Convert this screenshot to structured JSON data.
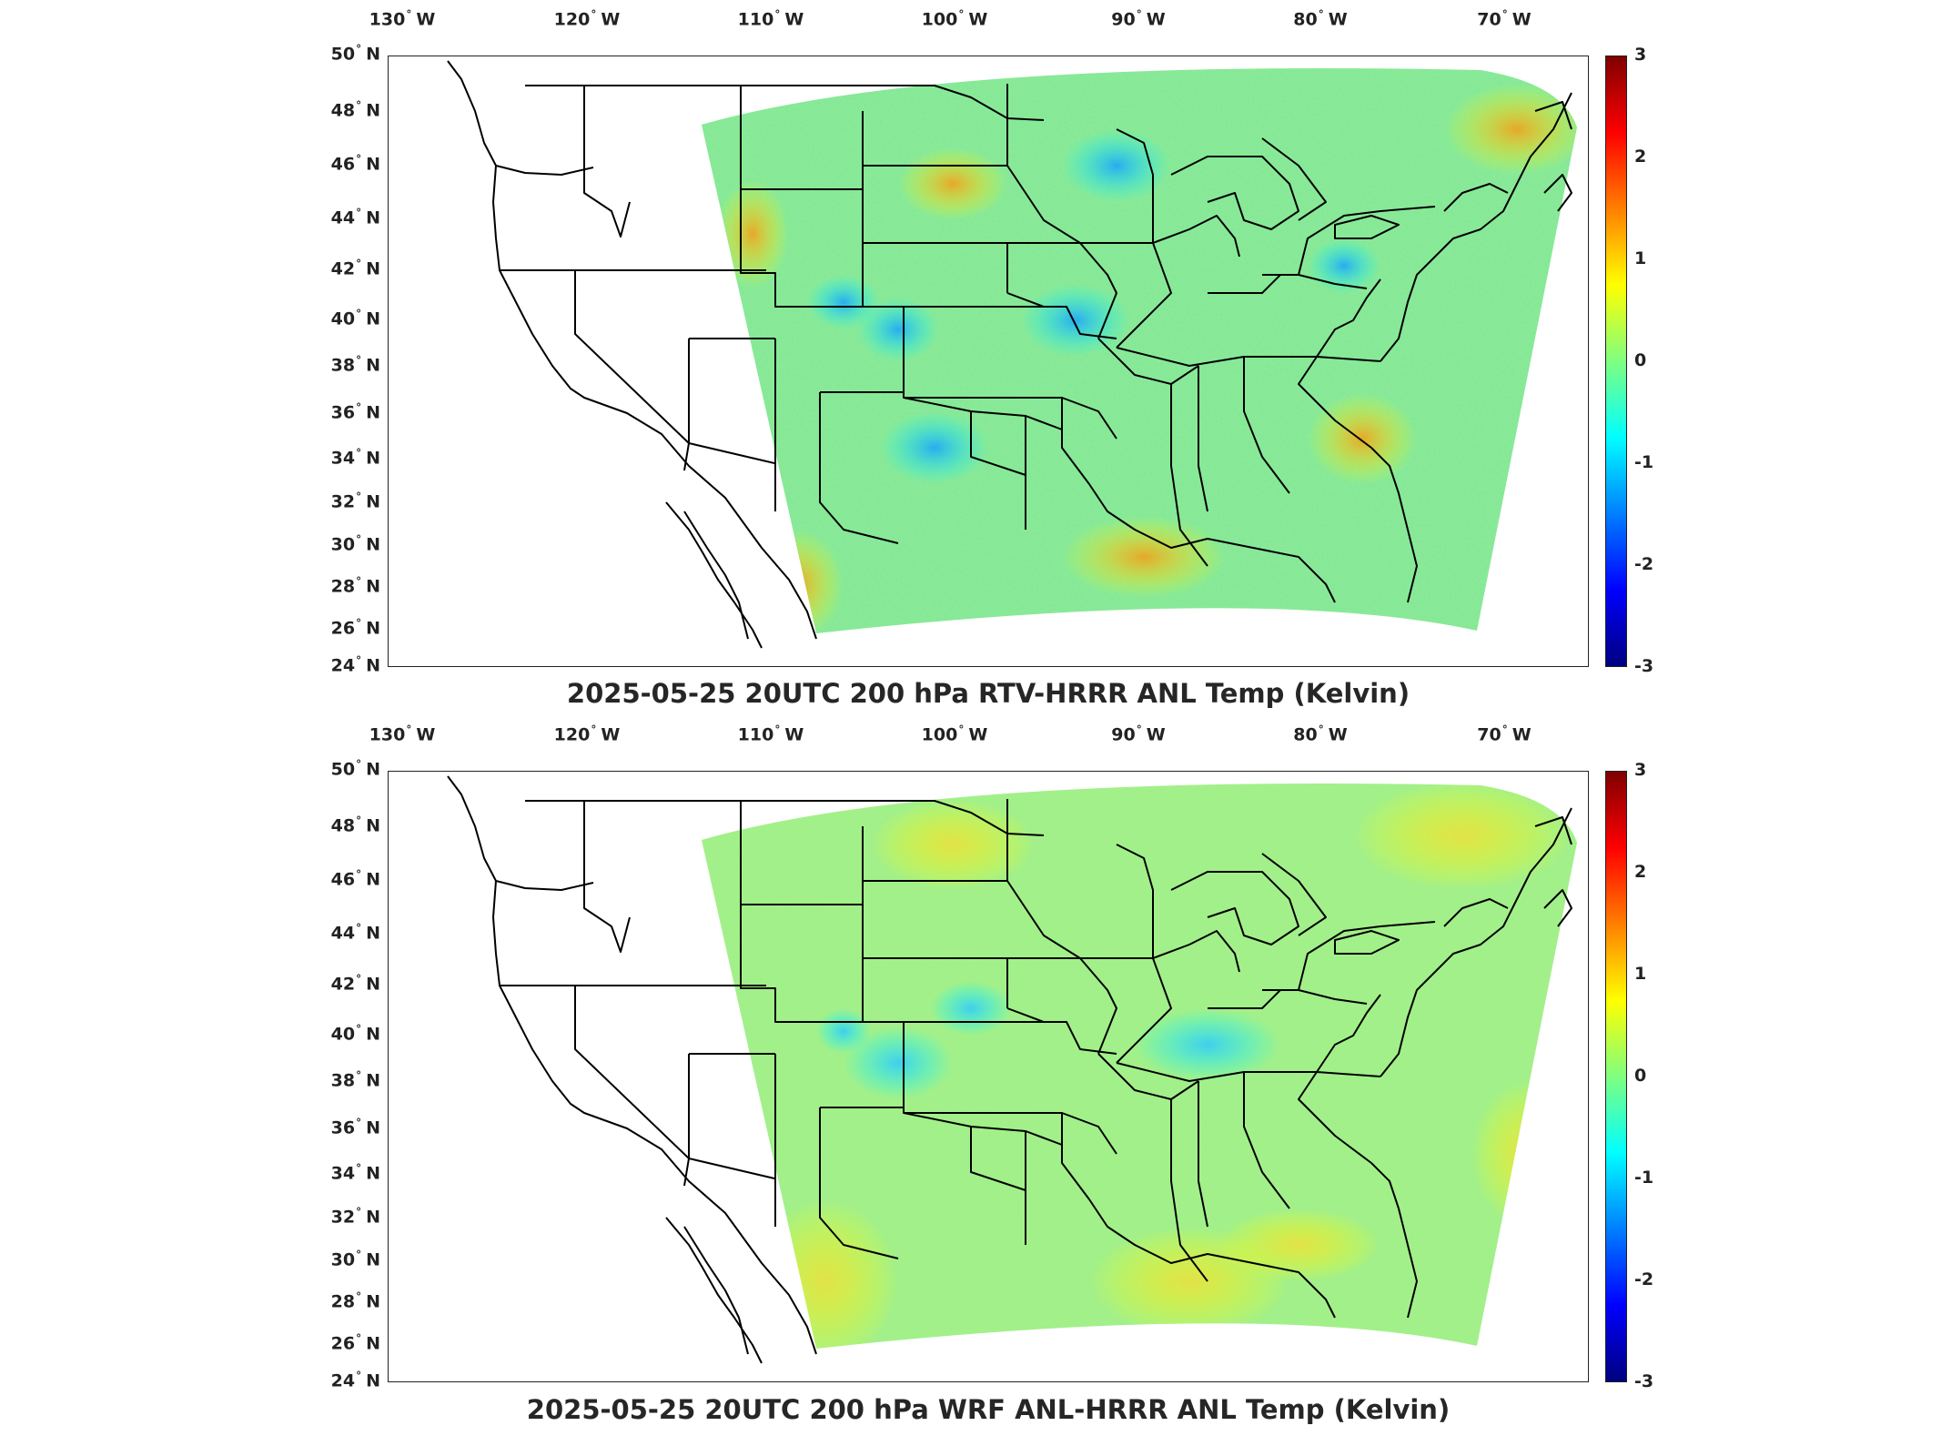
{
  "degree_symbol": "°",
  "longitude_labels": [
    {
      "deg": "130",
      "hem": "W"
    },
    {
      "deg": "120",
      "hem": "W"
    },
    {
      "deg": "110",
      "hem": "W"
    },
    {
      "deg": "100",
      "hem": "W"
    },
    {
      "deg": "90",
      "hem": "W"
    },
    {
      "deg": "80",
      "hem": "W"
    },
    {
      "deg": "70",
      "hem": "W"
    }
  ],
  "latitude_labels": [
    {
      "deg": "50",
      "hem": "N"
    },
    {
      "deg": "48",
      "hem": "N"
    },
    {
      "deg": "46",
      "hem": "N"
    },
    {
      "deg": "44",
      "hem": "N"
    },
    {
      "deg": "42",
      "hem": "N"
    },
    {
      "deg": "40",
      "hem": "N"
    },
    {
      "deg": "38",
      "hem": "N"
    },
    {
      "deg": "36",
      "hem": "N"
    },
    {
      "deg": "34",
      "hem": "N"
    },
    {
      "deg": "32",
      "hem": "N"
    },
    {
      "deg": "30",
      "hem": "N"
    },
    {
      "deg": "28",
      "hem": "N"
    },
    {
      "deg": "26",
      "hem": "N"
    },
    {
      "deg": "24",
      "hem": "N"
    }
  ],
  "colorbar": {
    "ticks": [
      "3",
      "2",
      "1",
      "0",
      "-1",
      "-2",
      "-3"
    ],
    "range": [
      -3,
      3
    ],
    "colormap": "jet"
  },
  "panels": [
    {
      "title": "2025-05-25 20UTC 200 hPa RTV-HRRR ANL Temp (Kelvin)",
      "field_variant": "rtv"
    },
    {
      "title": "2025-05-25 20UTC 200 hPa WRF ANL-HRRR ANL Temp (Kelvin)",
      "field_variant": "wrf"
    }
  ]
}
